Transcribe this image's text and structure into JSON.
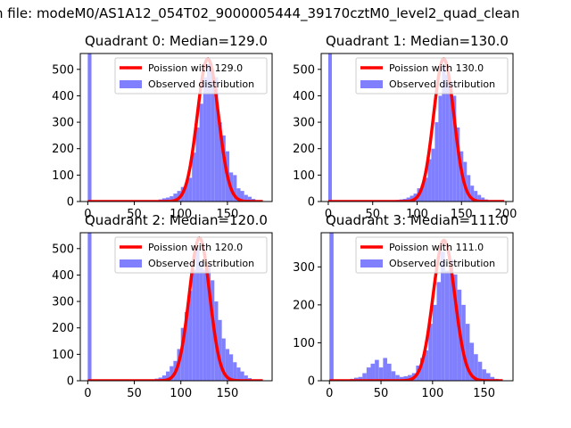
{
  "figure": {
    "suptitle": "n file: modeM0/AS1A12_054T02_9000005444_39170cztM0_level2_quad_clean"
  },
  "legend": {
    "observed_label": "Observed distribution",
    "fit_label_prefix": "Poission with ",
    "location": "upper right"
  },
  "colors": {
    "fit_line": "#ff0000",
    "histogram": "#8080ff",
    "axes": "#000000"
  },
  "chart_data": [
    {
      "type": "bar",
      "title": "Quadrant 0: Median=129.0",
      "median": 129.0,
      "fit_label": "Poission with 129.0",
      "xlim": [
        -8,
        198
      ],
      "ylim": [
        0,
        560
      ],
      "xticks": [
        0,
        50,
        100,
        150
      ],
      "yticks": [
        0,
        100,
        200,
        300,
        400,
        500
      ],
      "bin_width": 4,
      "zero_bin_value": 560,
      "hist_x": [
        68,
        72,
        76,
        80,
        84,
        88,
        92,
        96,
        100,
        104,
        108,
        112,
        116,
        120,
        124,
        128,
        132,
        136,
        140,
        144,
        148,
        152,
        156,
        160,
        164,
        168,
        172,
        176,
        180,
        184
      ],
      "hist_y": [
        2,
        4,
        8,
        12,
        15,
        20,
        30,
        40,
        55,
        70,
        90,
        185,
        280,
        370,
        470,
        520,
        500,
        470,
        300,
        250,
        190,
        110,
        100,
        50,
        40,
        25,
        18,
        10,
        5,
        2
      ],
      "fit_mean": 129.0,
      "fit_peak": 540
    },
    {
      "type": "bar",
      "title": "Quadrant 1: Median=130.0",
      "median": 130.0,
      "fit_label": "Poission with 130.0",
      "xlim": [
        -8,
        208
      ],
      "ylim": [
        0,
        560
      ],
      "xticks": [
        0,
        50,
        100,
        150,
        200
      ],
      "yticks": [
        0,
        100,
        200,
        300,
        400,
        500
      ],
      "bin_width": 4,
      "zero_bin_value": 560,
      "hist_x": [
        68,
        72,
        76,
        80,
        84,
        88,
        92,
        96,
        100,
        104,
        108,
        112,
        116,
        120,
        124,
        128,
        132,
        136,
        140,
        144,
        148,
        152,
        156,
        160,
        164,
        168,
        172,
        176,
        180,
        184,
        188
      ],
      "hist_y": [
        2,
        3,
        6,
        8,
        10,
        15,
        22,
        30,
        50,
        60,
        90,
        160,
        200,
        300,
        400,
        510,
        480,
        450,
        400,
        280,
        190,
        150,
        100,
        60,
        40,
        25,
        15,
        8,
        4,
        2,
        1
      ],
      "fit_mean": 130.0,
      "fit_peak": 540
    },
    {
      "type": "bar",
      "title": "Quadrant 2: Median=120.0",
      "median": 120.0,
      "fit_label": "Poission with 120.0",
      "xlim": [
        -8,
        198
      ],
      "ylim": [
        0,
        560
      ],
      "xticks": [
        0,
        50,
        100,
        150
      ],
      "yticks": [
        0,
        100,
        200,
        300,
        400,
        500
      ],
      "bin_width": 4,
      "zero_bin_value": 560,
      "hist_x": [
        60,
        64,
        68,
        72,
        76,
        80,
        84,
        88,
        92,
        96,
        100,
        104,
        108,
        112,
        116,
        120,
        124,
        128,
        132,
        136,
        140,
        144,
        148,
        152,
        156,
        160,
        164,
        168,
        172,
        176,
        180
      ],
      "hist_y": [
        2,
        3,
        5,
        8,
        12,
        20,
        35,
        55,
        75,
        120,
        200,
        260,
        340,
        420,
        500,
        450,
        420,
        440,
        380,
        300,
        230,
        160,
        120,
        100,
        70,
        50,
        35,
        20,
        10,
        5,
        2
      ],
      "fit_mean": 120.0,
      "fit_peak": 540
    },
    {
      "type": "bar",
      "title": "Quadrant 3: Median=111.0",
      "median": 111.0,
      "fit_label": "Poission with 111.0",
      "xlim": [
        -8,
        178
      ],
      "ylim": [
        0,
        390
      ],
      "xticks": [
        0,
        50,
        100,
        150
      ],
      "yticks": [
        0,
        100,
        200,
        300
      ],
      "bin_width": 4,
      "zero_bin_value": 390,
      "hist_x": [
        16,
        20,
        24,
        28,
        32,
        36,
        40,
        44,
        48,
        52,
        56,
        60,
        64,
        68,
        72,
        76,
        80,
        84,
        88,
        92,
        96,
        100,
        104,
        108,
        112,
        116,
        120,
        124,
        128,
        132,
        136,
        140,
        144,
        148,
        152,
        156,
        160
      ],
      "hist_y": [
        2,
        5,
        8,
        10,
        20,
        35,
        45,
        55,
        35,
        60,
        45,
        25,
        15,
        10,
        12,
        15,
        20,
        40,
        60,
        80,
        150,
        200,
        260,
        340,
        290,
        320,
        280,
        240,
        200,
        150,
        100,
        70,
        50,
        30,
        20,
        10,
        5
      ],
      "fit_mean": 111.0,
      "fit_peak": 370
    }
  ]
}
